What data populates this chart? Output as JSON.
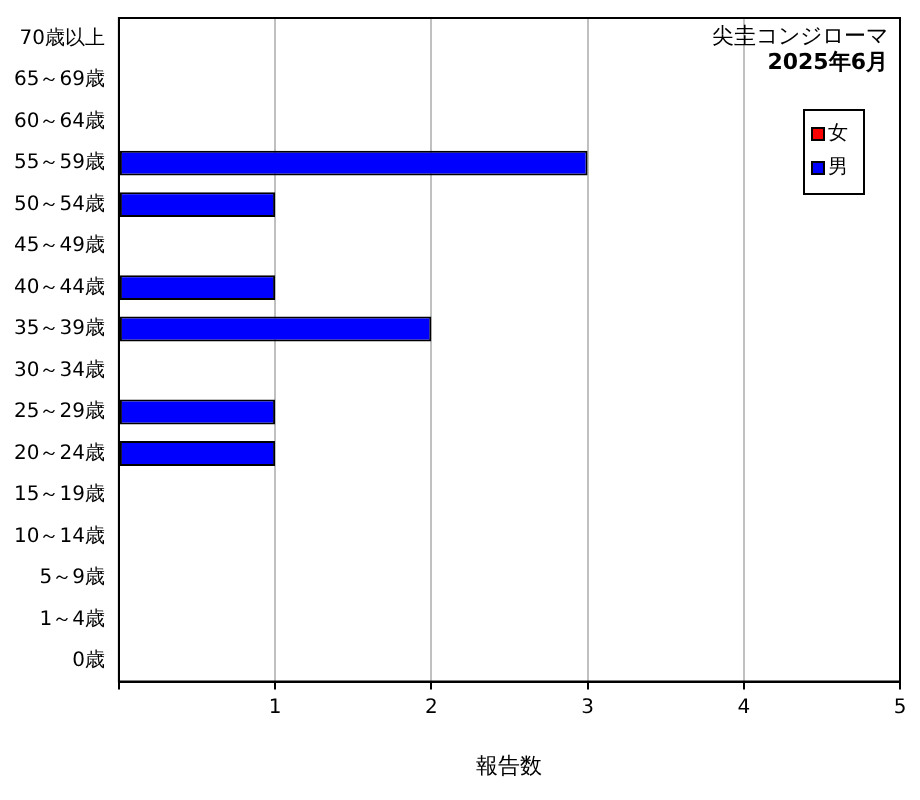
{
  "chart_data": {
    "type": "bar",
    "orientation": "horizontal",
    "stacked": true,
    "title": "尖圭コンジローマ",
    "subtitle": "2025年6月",
    "xlabel": "報告数",
    "categories": [
      "70歳以上",
      "65～69歳",
      "60～64歳",
      "55～59歳",
      "50～54歳",
      "45～49歳",
      "40～44歳",
      "35～39歳",
      "30～34歳",
      "25～29歳",
      "20～24歳",
      "15～19歳",
      "10～14歳",
      "5～9歳",
      "1～4歳",
      "0歳"
    ],
    "series": [
      {
        "name": "女",
        "color": "#ff0000",
        "values": [
          0,
          0,
          0,
          0,
          0,
          0,
          0,
          0,
          0,
          0,
          0,
          0,
          0,
          0,
          0,
          0
        ]
      },
      {
        "name": "男",
        "color": "#0000ff",
        "values": [
          0,
          0,
          0,
          3,
          1,
          0,
          1,
          2,
          0,
          1,
          1,
          0,
          0,
          0,
          0,
          0
        ]
      }
    ],
    "xlim": [
      0,
      5
    ],
    "xticks": [
      {
        "value": 0,
        "label": null
      },
      1,
      2,
      3,
      4,
      5
    ],
    "grid": "x",
    "legend": "top right"
  }
}
